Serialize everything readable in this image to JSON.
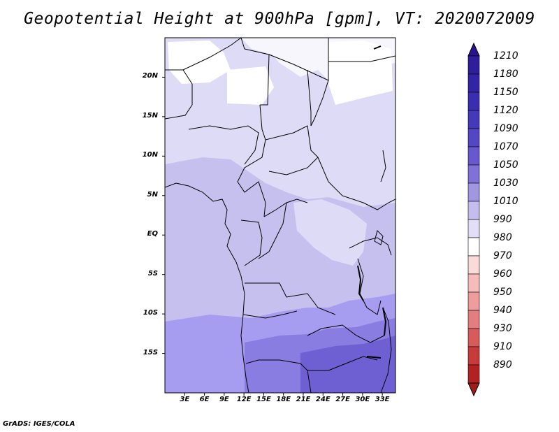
{
  "title": "Geopotential Height at 900hPa [gpm], VT: 2020072009",
  "credit": "GrADS: IGES/COLA",
  "chart_data": {
    "type": "heatmap",
    "variable": "Geopotential Height at 900hPa",
    "units": "gpm",
    "valid_time": "2020072009",
    "x_axis": {
      "range": [
        0,
        35
      ],
      "unit": "degrees East",
      "ticks": [
        {
          "value": 3,
          "label": "3E"
        },
        {
          "value": 6,
          "label": "6E"
        },
        {
          "value": 9,
          "label": "9E"
        },
        {
          "value": 12,
          "label": "12E"
        },
        {
          "value": 15,
          "label": "15E"
        },
        {
          "value": 18,
          "label": "18E"
        },
        {
          "value": 21,
          "label": "21E"
        },
        {
          "value": 24,
          "label": "24E"
        },
        {
          "value": 27,
          "label": "27E"
        },
        {
          "value": 30,
          "label": "30E"
        },
        {
          "value": 33,
          "label": "33E"
        }
      ]
    },
    "y_axis": {
      "range": [
        -20,
        25
      ],
      "unit": "degrees latitude",
      "ticks": [
        {
          "value": 20,
          "label": "20N"
        },
        {
          "value": 15,
          "label": "15N"
        },
        {
          "value": 10,
          "label": "10N"
        },
        {
          "value": 5,
          "label": "5N"
        },
        {
          "value": 0,
          "label": "EQ"
        },
        {
          "value": -5,
          "label": "5S"
        },
        {
          "value": -10,
          "label": "10S"
        },
        {
          "value": -15,
          "label": "15S"
        }
      ]
    },
    "colorbar": {
      "orientation": "vertical",
      "position": "right",
      "levels": [
        {
          "label": "1210",
          "color": "#2e1e9a"
        },
        {
          "label": "1180",
          "color": "#3324a6"
        },
        {
          "label": "1150",
          "color": "#3a2db0"
        },
        {
          "label": "1120",
          "color": "#4538b9"
        },
        {
          "label": "1090",
          "color": "#5546c4"
        },
        {
          "label": "1070",
          "color": "#6858cf"
        },
        {
          "label": "1050",
          "color": "#7f71d8"
        },
        {
          "label": "1030",
          "color": "#a196e2"
        },
        {
          "label": "1010",
          "color": "#c4bdee"
        },
        {
          "label": "990",
          "color": "#e2def7"
        },
        {
          "label": "980",
          "color": "#ffffff"
        },
        {
          "label": "970",
          "color": "#fbdada"
        },
        {
          "label": "960",
          "color": "#f6bcbc"
        },
        {
          "label": "950",
          "color": "#ee9c9c"
        },
        {
          "label": "940",
          "color": "#e47d7d"
        },
        {
          "label": "930",
          "color": "#d85b5b"
        },
        {
          "label": "910",
          "color": "#c83b3b"
        },
        {
          "label": "890",
          "color": "#b22222"
        }
      ],
      "top_color": "#2a1490",
      "bottom_color": "#a01c1c"
    }
  }
}
